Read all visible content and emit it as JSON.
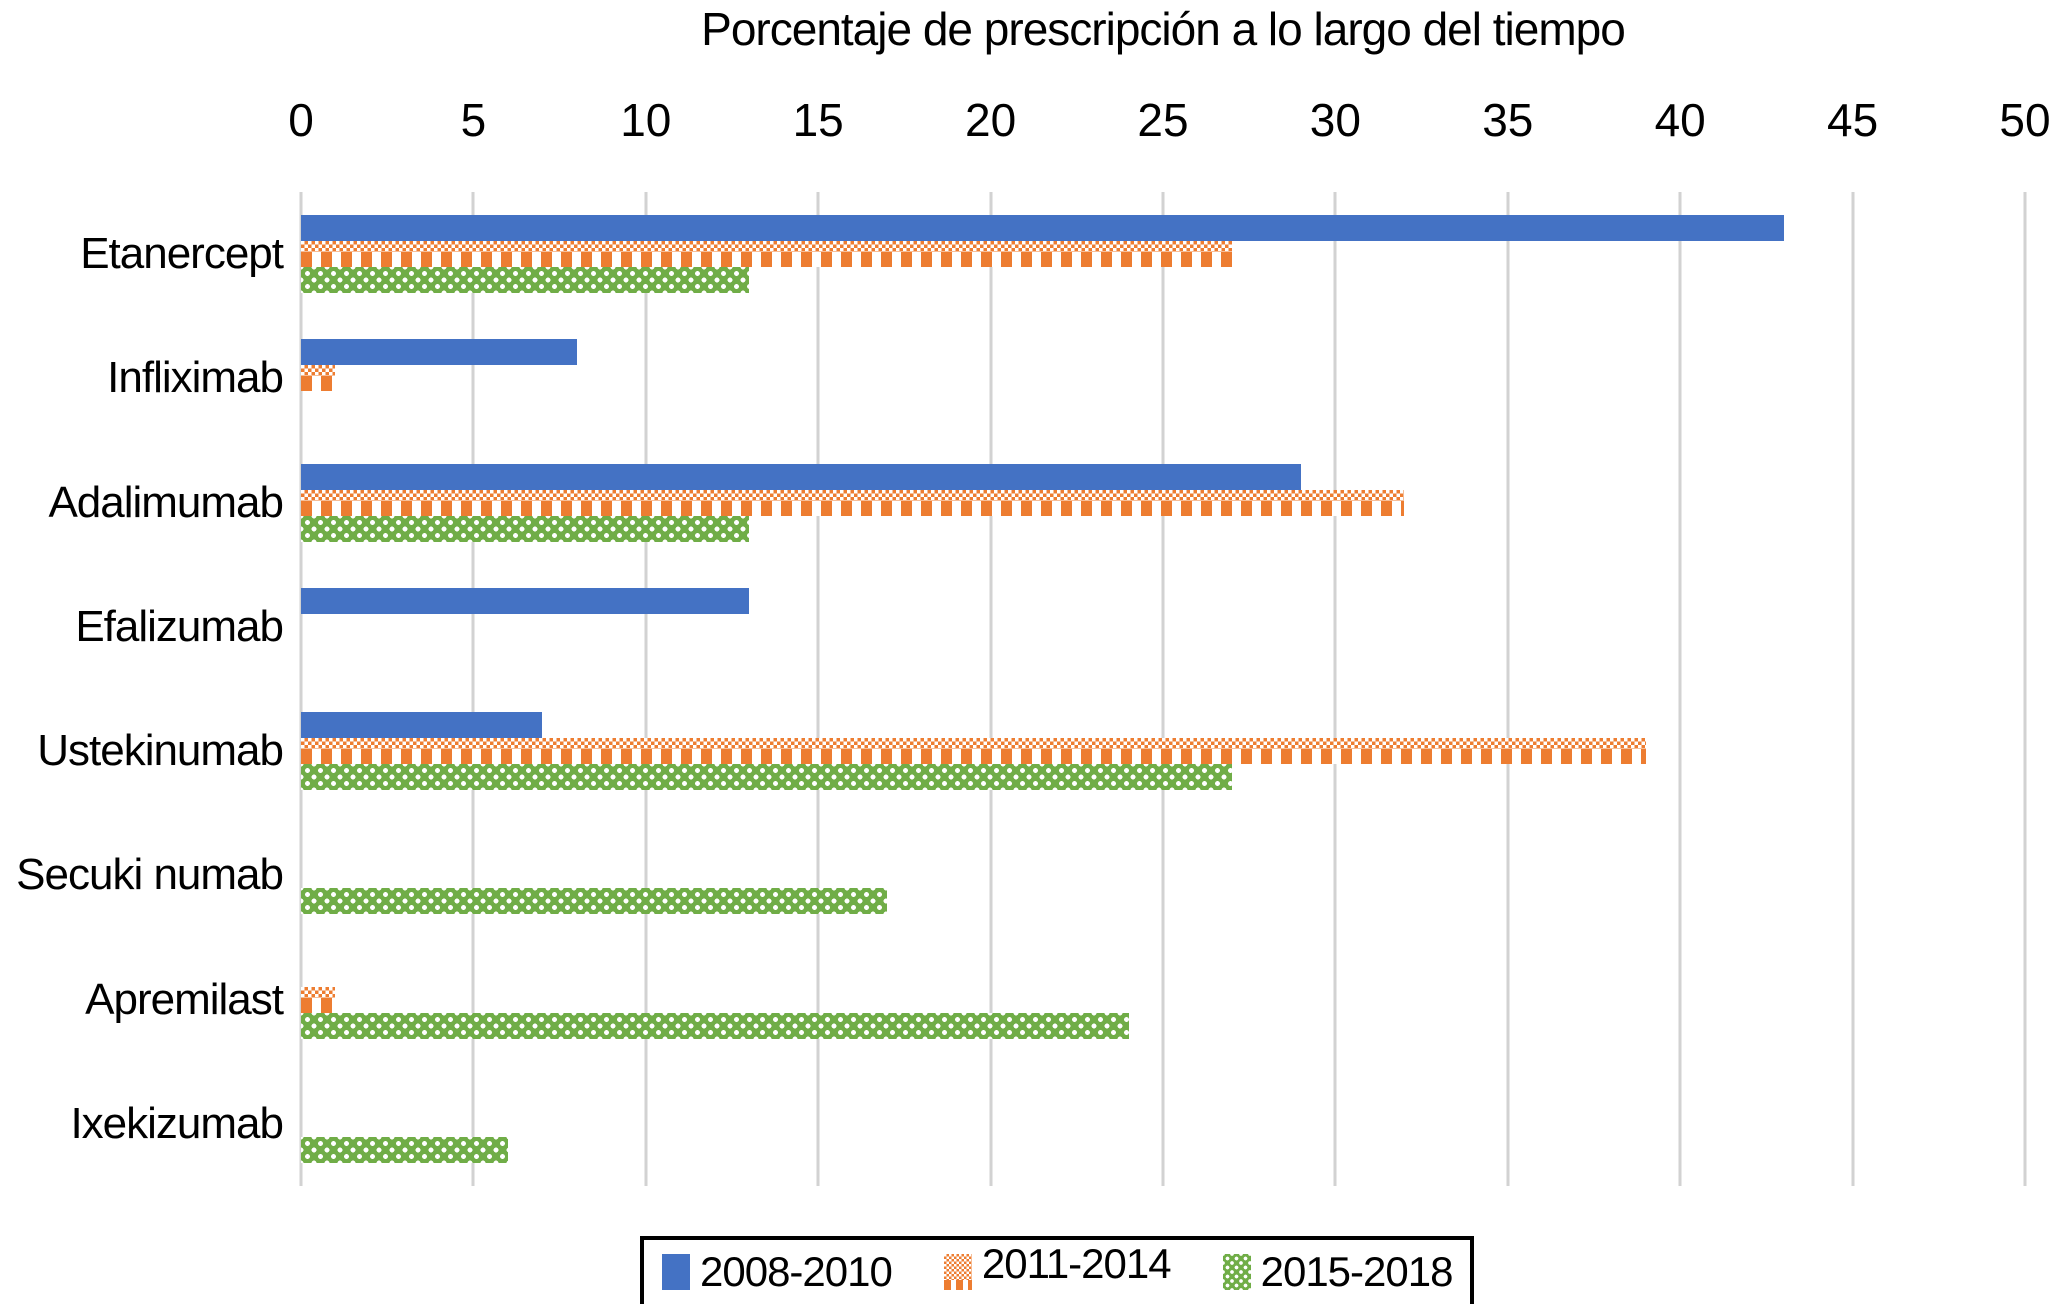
{
  "title": "Porcentaje de prescripción a lo largo del tiempo",
  "chart_data": {
    "type": "bar",
    "orientation": "horizontal",
    "title": "Porcentaje de prescripción a lo largo del tiempo",
    "xlabel": "",
    "ylabel": "",
    "xlim": [
      0,
      50
    ],
    "xticks": [
      0,
      5,
      10,
      15,
      20,
      25,
      30,
      35,
      40,
      45,
      50
    ],
    "grid": "vertical",
    "axis_position": "top",
    "legend_position": "bottom",
    "categories": [
      "Etanercept",
      "Infliximab",
      "Adalimumab",
      "Efalizumab",
      "Ustekinumab",
      "Secuki numab",
      "Apremilast",
      "Ixekizumab"
    ],
    "series": [
      {
        "name": "2008-2010",
        "color": "#4472C4",
        "pattern": "solid",
        "values": [
          43,
          8,
          29,
          13,
          7,
          0,
          0,
          0
        ]
      },
      {
        "name": "2011-2014",
        "color": "#ED7D31",
        "pattern": "checker-dash",
        "values": [
          27,
          1,
          32,
          0,
          39,
          0,
          1,
          0
        ]
      },
      {
        "name": "2015-2018",
        "color": "#70AD47",
        "pattern": "dots",
        "values": [
          13,
          0,
          13,
          0,
          27,
          17,
          24,
          6
        ]
      }
    ]
  },
  "colors": {
    "series_blue": "#4472C4",
    "series_orange": "#ED7D31",
    "series_green": "#70AD47",
    "gridline": "#D2D2D2",
    "text": "#000000",
    "background": "#FFFFFF",
    "legend_border": "#000000"
  }
}
